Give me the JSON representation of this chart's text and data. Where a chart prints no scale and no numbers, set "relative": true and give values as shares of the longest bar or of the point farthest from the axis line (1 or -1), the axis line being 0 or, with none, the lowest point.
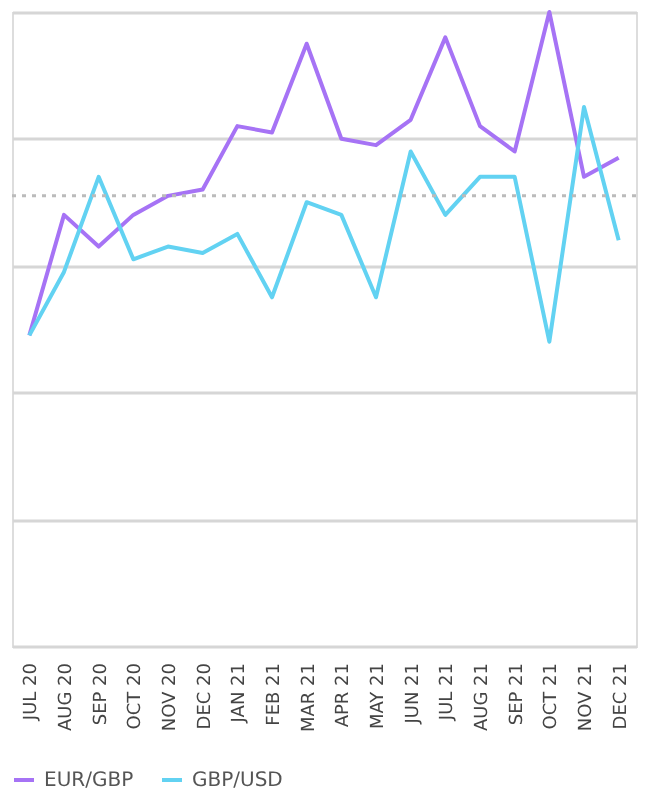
{
  "chart_data": {
    "type": "line",
    "relative": true,
    "categories": [
      "JUL 20",
      "AUG 20",
      "SEP 20",
      "OCT 20",
      "NOV 20",
      "DEC 20",
      "JAN 21",
      "FEB 21",
      "MAR 21",
      "APR 21",
      "MAY 21",
      "JUN 21",
      "JUL 21",
      "AUG 21",
      "SEP 21",
      "OCT 21",
      "NOV 21",
      "DEC 21"
    ],
    "series": [
      {
        "name": "EUR/GBP",
        "color": "#a673f5",
        "values": [
          0.49,
          0.68,
          0.63,
          0.68,
          0.71,
          0.72,
          0.82,
          0.81,
          0.95,
          0.8,
          0.79,
          0.83,
          0.96,
          0.82,
          0.78,
          1,
          0.74,
          0.77
        ]
      },
      {
        "name": "GBP/USD",
        "color": "#62d2f2",
        "values": [
          0.49,
          0.59,
          0.74,
          0.61,
          0.63,
          0.62,
          0.65,
          0.55,
          0.7,
          0.68,
          0.55,
          0.78,
          0.68,
          0.74,
          0.74,
          0.48,
          0.85,
          0.64
        ]
      }
    ],
    "ref_lines": [
      {
        "axis": "y",
        "value": 0.71,
        "line_style": "dotted",
        "color": "#bbbbbb"
      }
    ],
    "grid": "y",
    "legend": "bottom",
    "marker": "none",
    "line_style": "solid"
  }
}
